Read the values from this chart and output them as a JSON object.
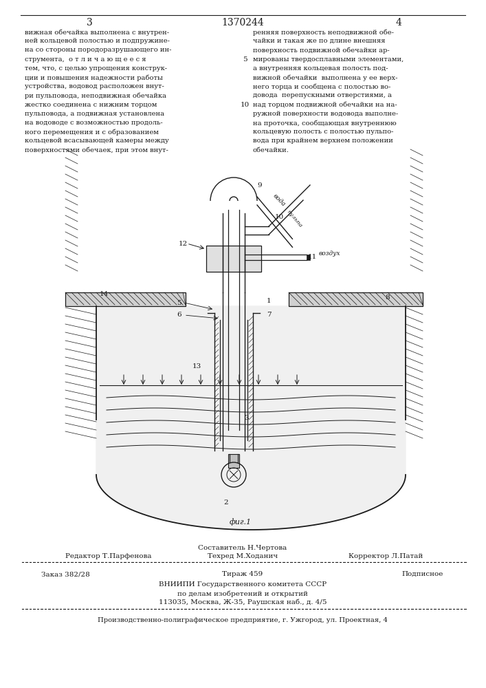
{
  "page_number_left": "3",
  "patent_number": "1370244",
  "page_number_right": "4",
  "col1_text": [
    "вижная обечайка выполнена с внутрен-",
    "ней кольцевой полостью и подпружине-",
    "на со стороны породоразрушающего ин-",
    "струмента,  о т л и ч а ю щ е е с я",
    "тем, что, с целью упрощения конструк-",
    "ции и повышения надежности работы",
    "устройства, водовод расположен внут-",
    "ри пульповода, неподвижная обечайка",
    "жестко соединена с нижним торцом",
    "пульповода, а подвижная установлена",
    "на водоводе с возможностью продоль-",
    "ного перемещения и с образованием",
    "кольцевой всасывающей камеры между",
    "поверхностями обечаек, при этом внут-"
  ],
  "col2_text": [
    "ренняя поверхность неподвижной обе-",
    "чайки и такая же по длине внешняя",
    "поверхность подвижной обечайки ар-",
    "мированы твердосплавными элементами,",
    "а внутренняя кольцевая полость под-",
    "вижной обечайки  выполнена у ее верх-",
    "него торца и сообщена с полостью во-",
    "довода  перепускными отверстиями, а",
    "над торцом подвижной обечайки на на-",
    "ружной поверхности водовода выполне-",
    "на проточка, сообщающая внутреннюю",
    "кольцевую полость с полостью пульпо-",
    "вода при крайнем верхнем положении",
    "обечайки."
  ],
  "fig_caption": "фиг.1",
  "staff_line1": "Составитель Н.Чертова",
  "staff_line2_left": "Редактор Т.Парфенова",
  "staff_line2_mid": "Техред М.Ходанич",
  "staff_line2_right": "Корректор Л.Патай",
  "order_left": "Заказ 382/28",
  "order_mid": "Тираж 459",
  "order_right": "Подписное",
  "org_line1": "ВНИИПИ Государственного комитета СССР",
  "org_line2": "по делам изобретений и открытий",
  "org_line3": "113035, Москва, Ж-35, Раушская наб., д. 4/5",
  "print_line": "Производственно-полиграфическое предприятие, г. Ужгород, ул. Проектная, 4",
  "bg_color": "#ffffff",
  "text_color": "#1a1a1a"
}
